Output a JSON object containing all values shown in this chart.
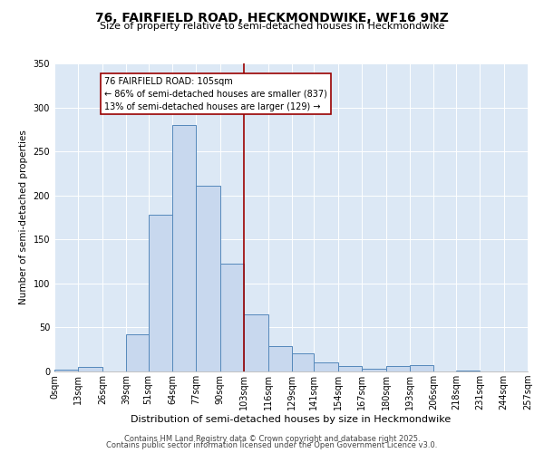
{
  "title": "76, FAIRFIELD ROAD, HECKMONDWIKE, WF16 9NZ",
  "subtitle": "Size of property relative to semi-detached houses in Heckmondwike",
  "xlabel": "Distribution of semi-detached houses by size in Heckmondwike",
  "ylabel": "Number of semi-detached properties",
  "bin_edges": [
    0,
    13,
    26,
    39,
    51,
    64,
    77,
    90,
    103,
    116,
    129,
    141,
    154,
    167,
    180,
    193,
    206,
    218,
    231,
    244,
    257
  ],
  "bin_labels": [
    "0sqm",
    "13sqm",
    "26sqm",
    "39sqm",
    "51sqm",
    "64sqm",
    "77sqm",
    "90sqm",
    "103sqm",
    "116sqm",
    "129sqm",
    "141sqm",
    "154sqm",
    "167sqm",
    "180sqm",
    "193sqm",
    "206sqm",
    "218sqm",
    "231sqm",
    "244sqm",
    "257sqm"
  ],
  "counts": [
    2,
    5,
    0,
    42,
    178,
    280,
    211,
    122,
    65,
    29,
    21,
    10,
    6,
    3,
    6,
    7,
    0,
    1,
    0,
    0
  ],
  "bar_facecolor": "#c8d8ee",
  "bar_edgecolor": "#5588bb",
  "vline_x": 103,
  "vline_color": "#990000",
  "annotation_title": "76 FAIRFIELD ROAD: 105sqm",
  "annotation_line1": "← 86% of semi-detached houses are smaller (837)",
  "annotation_line2": "13% of semi-detached houses are larger (129) →",
  "annotation_box_color": "#990000",
  "ylim": [
    0,
    350
  ],
  "yticks": [
    0,
    50,
    100,
    150,
    200,
    250,
    300,
    350
  ],
  "bg_color": "#dce8f5",
  "footer1": "Contains HM Land Registry data © Crown copyright and database right 2025.",
  "footer2": "Contains public sector information licensed under the Open Government Licence v3.0.",
  "title_fontsize": 10,
  "subtitle_fontsize": 8,
  "xlabel_fontsize": 8,
  "ylabel_fontsize": 7.5,
  "tick_fontsize": 7,
  "footer_fontsize": 6,
  "annot_fontsize": 7
}
